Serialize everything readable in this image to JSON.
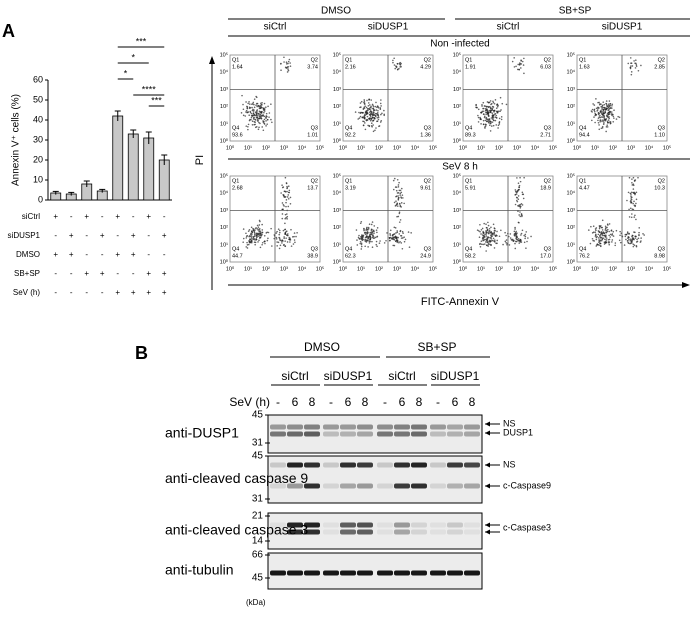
{
  "panel_labels": [
    "A",
    "B"
  ],
  "chart_data": {
    "type": "bar",
    "y_label": "Annexin V⁺ cells (%)",
    "ylim": [
      0,
      60
    ],
    "yticks": [
      0,
      10,
      20,
      30,
      40,
      50,
      60
    ],
    "color": "#c8c8c8",
    "values": [
      3.5,
      3,
      8,
      4.5,
      42,
      33,
      31,
      20
    ],
    "errors": [
      0.8,
      0.8,
      1.5,
      0.8,
      2.5,
      2,
      3,
      2.5
    ],
    "significance": [
      "***",
      "*",
      "*",
      "****",
      "***"
    ],
    "conditions": [
      {
        "label": "siCtrl",
        "marks": [
          "+",
          "-",
          "+",
          "-",
          "+",
          "-",
          "+",
          "-"
        ]
      },
      {
        "label": "siDUSP1",
        "marks": [
          "-",
          "+",
          "-",
          "+",
          "-",
          "+",
          "-",
          "+"
        ]
      },
      {
        "label": "DMSO",
        "marks": [
          "+",
          "+",
          "-",
          "-",
          "+",
          "+",
          "-",
          "-"
        ]
      },
      {
        "label": "SB+SP",
        "marks": [
          "-",
          "-",
          "+",
          "+",
          "-",
          "-",
          "+",
          "+"
        ]
      },
      {
        "label": "SeV (h)",
        "marks": [
          "-",
          "-",
          "-",
          "-",
          "+",
          "+",
          "+",
          "+"
        ]
      }
    ]
  },
  "flow": {
    "groups": [
      "DMSO",
      "SB+SP"
    ],
    "columns": [
      "siCtrl",
      "siDUSP1",
      "siCtrl",
      "siDUSP1"
    ],
    "y_label": "PI",
    "x_label": "FITC-Annexin V",
    "axis_ticks": [
      "10⁰",
      "10¹",
      "10²",
      "10³",
      "10⁴",
      "10⁵"
    ],
    "quadrant_names": [
      "Q1",
      "Q2",
      "Q3",
      "Q4"
    ],
    "rows": [
      {
        "label": "Non -infected",
        "plots": [
          [
            "1.64",
            "3.74",
            "1.01",
            "93.6"
          ],
          [
            "2.16",
            "4.29",
            "1.36",
            "92.2"
          ],
          [
            "1.91",
            "6.03",
            "2.71",
            "89.3"
          ],
          [
            "1.63",
            "2.85",
            "1.10",
            "94.4"
          ]
        ]
      },
      {
        "label": "SeV 8 h",
        "plots": [
          [
            "2.68",
            "13.7",
            "38.9",
            "44.7"
          ],
          [
            "3.19",
            "9.61",
            "24.9",
            "62.3"
          ],
          [
            "5.91",
            "18.9",
            "17.0",
            "58.2"
          ],
          [
            "4.47",
            "10.3",
            "8.98",
            "76.2"
          ]
        ]
      }
    ]
  },
  "blot": {
    "groups": [
      "DMSO",
      "SB+SP"
    ],
    "sirna": [
      "siCtrl",
      "siDUSP1",
      "siCtrl",
      "siDUSP1"
    ],
    "sev_label": "SeV (h)",
    "lanes": [
      "-",
      "6",
      "8"
    ],
    "unit": "(kDa)",
    "rows": [
      {
        "label": "anti-DUSP1",
        "markers": [
          "45",
          "31"
        ],
        "bands": [
          "NS",
          "DUSP1"
        ]
      },
      {
        "label": "anti-cleaved caspase 9",
        "markers": [
          "45",
          "31"
        ],
        "bands": [
          "NS",
          "c-Caspase9"
        ]
      },
      {
        "label": "anti-cleaved caspase 3",
        "markers": [
          "21",
          "14"
        ],
        "bands": [
          "c-Caspase3"
        ]
      },
      {
        "label": "anti-tubulin",
        "markers": [
          "66",
          "45"
        ],
        "bands": []
      }
    ]
  }
}
